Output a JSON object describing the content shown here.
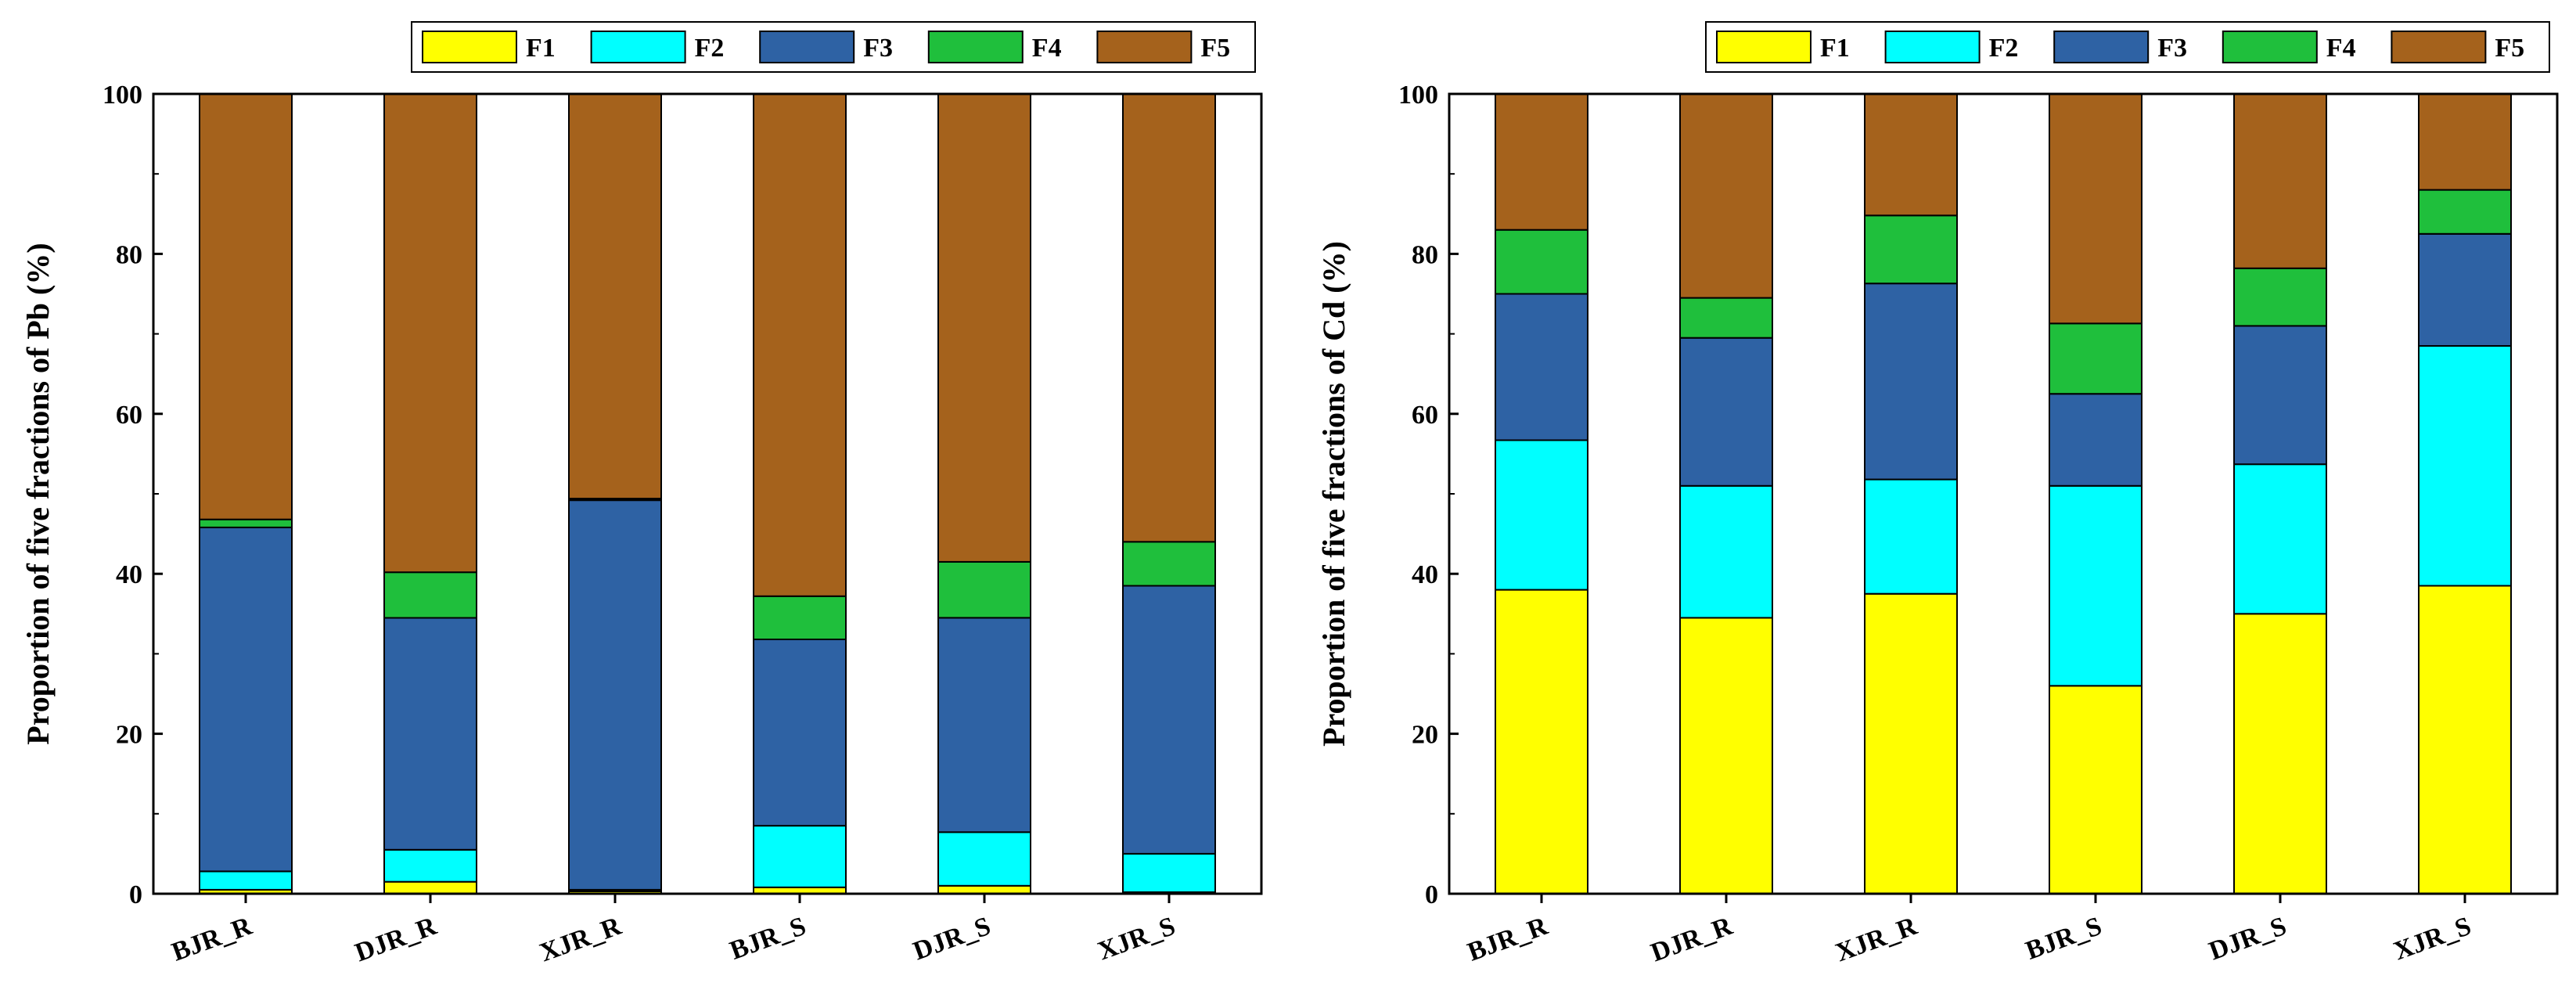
{
  "colors": {
    "F1": "#ffff00",
    "F2": "#00ffff",
    "F3": "#2e62a4",
    "F4": "#1fbf3c",
    "F5": "#a5621c"
  },
  "chart_data": [
    {
      "type": "bar",
      "stacked": true,
      "title": "",
      "xlabel": "",
      "ylabel": "Proportion of five fractions of Pb (%)",
      "ylim": [
        0,
        100
      ],
      "yticks": [
        "0",
        "20",
        "40",
        "60",
        "80",
        "100"
      ],
      "legend": [
        "F1",
        "F2",
        "F3",
        "F4",
        "F5"
      ],
      "legend_position": "top",
      "categories": [
        "BJR_R",
        "DJR_R",
        "XJR_R",
        "BJR_S",
        "DJR_S",
        "XJR_S"
      ],
      "series": [
        {
          "name": "F1",
          "values": [
            0.5,
            1.5,
            0.3,
            0.8,
            1.0,
            0.2
          ]
        },
        {
          "name": "F2",
          "values": [
            2.3,
            4.0,
            0.2,
            7.7,
            6.7,
            4.8
          ]
        },
        {
          "name": "F3",
          "values": [
            43.0,
            29.0,
            48.7,
            23.3,
            26.8,
            33.5
          ]
        },
        {
          "name": "F4",
          "values": [
            1.0,
            5.7,
            0.2,
            5.4,
            7.0,
            5.5
          ]
        },
        {
          "name": "F5",
          "values": [
            53.2,
            59.8,
            50.6,
            62.8,
            58.5,
            56.0
          ]
        }
      ]
    },
    {
      "type": "bar",
      "stacked": true,
      "title": "",
      "xlabel": "",
      "ylabel": "Proportion of five fractions of Cd (%)",
      "ylim": [
        0,
        100
      ],
      "yticks": [
        "0",
        "20",
        "40",
        "60",
        "80",
        "100"
      ],
      "legend": [
        "F1",
        "F2",
        "F3",
        "F4",
        "F5"
      ],
      "legend_position": "top",
      "categories": [
        "BJR_R",
        "DJR_R",
        "XJR_R",
        "BJR_S",
        "DJR_S",
        "XJR_S"
      ],
      "series": [
        {
          "name": "F1",
          "values": [
            38.0,
            34.5,
            37.5,
            26.0,
            35.0,
            38.5
          ]
        },
        {
          "name": "F2",
          "values": [
            18.7,
            16.5,
            14.3,
            25.0,
            18.7,
            30.0
          ]
        },
        {
          "name": "F3",
          "values": [
            18.3,
            18.5,
            24.5,
            11.5,
            17.3,
            14.0
          ]
        },
        {
          "name": "F4",
          "values": [
            8.0,
            5.0,
            8.5,
            8.8,
            7.2,
            5.5
          ]
        },
        {
          "name": "F5",
          "values": [
            17.0,
            25.5,
            15.2,
            28.7,
            21.8,
            12.0
          ]
        }
      ]
    }
  ]
}
